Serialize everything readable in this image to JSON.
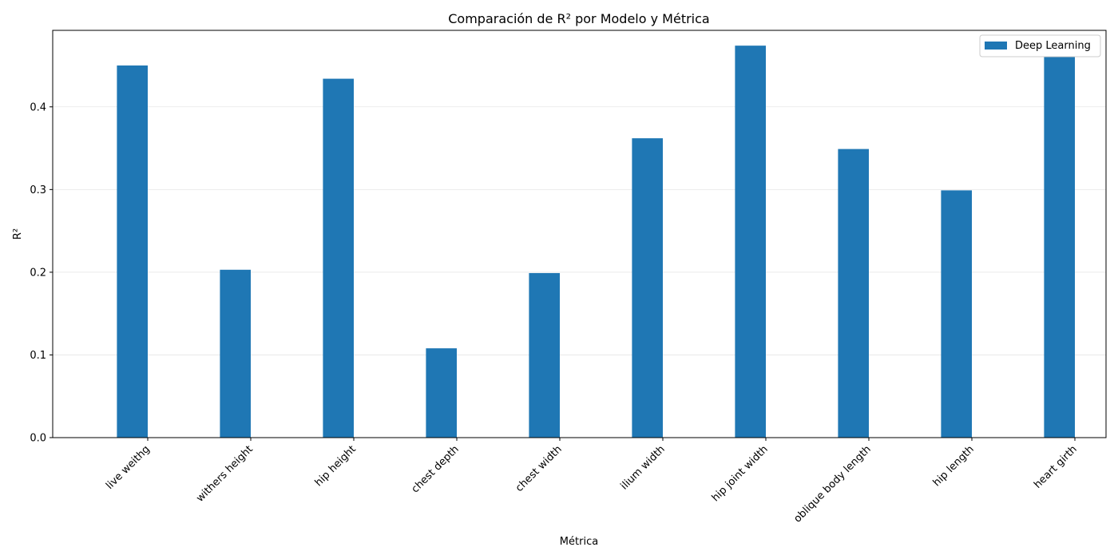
{
  "chart_data": {
    "type": "bar",
    "title": "Comparación de R² por Modelo y Métrica",
    "xlabel": "Métrica",
    "ylabel": "R²",
    "categories": [
      "live weithg",
      "withers height",
      "hip height",
      "chest depth",
      "chest width",
      "ilium width",
      "hip joint width",
      "oblique body length",
      "hip length",
      "heart girth"
    ],
    "series": [
      {
        "name": "Deep Learning",
        "color": "#1f77b4",
        "values": [
          0.45,
          0.203,
          0.434,
          0.108,
          0.199,
          0.362,
          0.474,
          0.349,
          0.299,
          0.461
        ]
      }
    ],
    "ylim": [
      0,
      0.4925
    ],
    "yticks": [
      "0.0",
      "0.1",
      "0.2",
      "0.3",
      "0.4"
    ],
    "grid": "y",
    "legend_position": "top-right"
  }
}
